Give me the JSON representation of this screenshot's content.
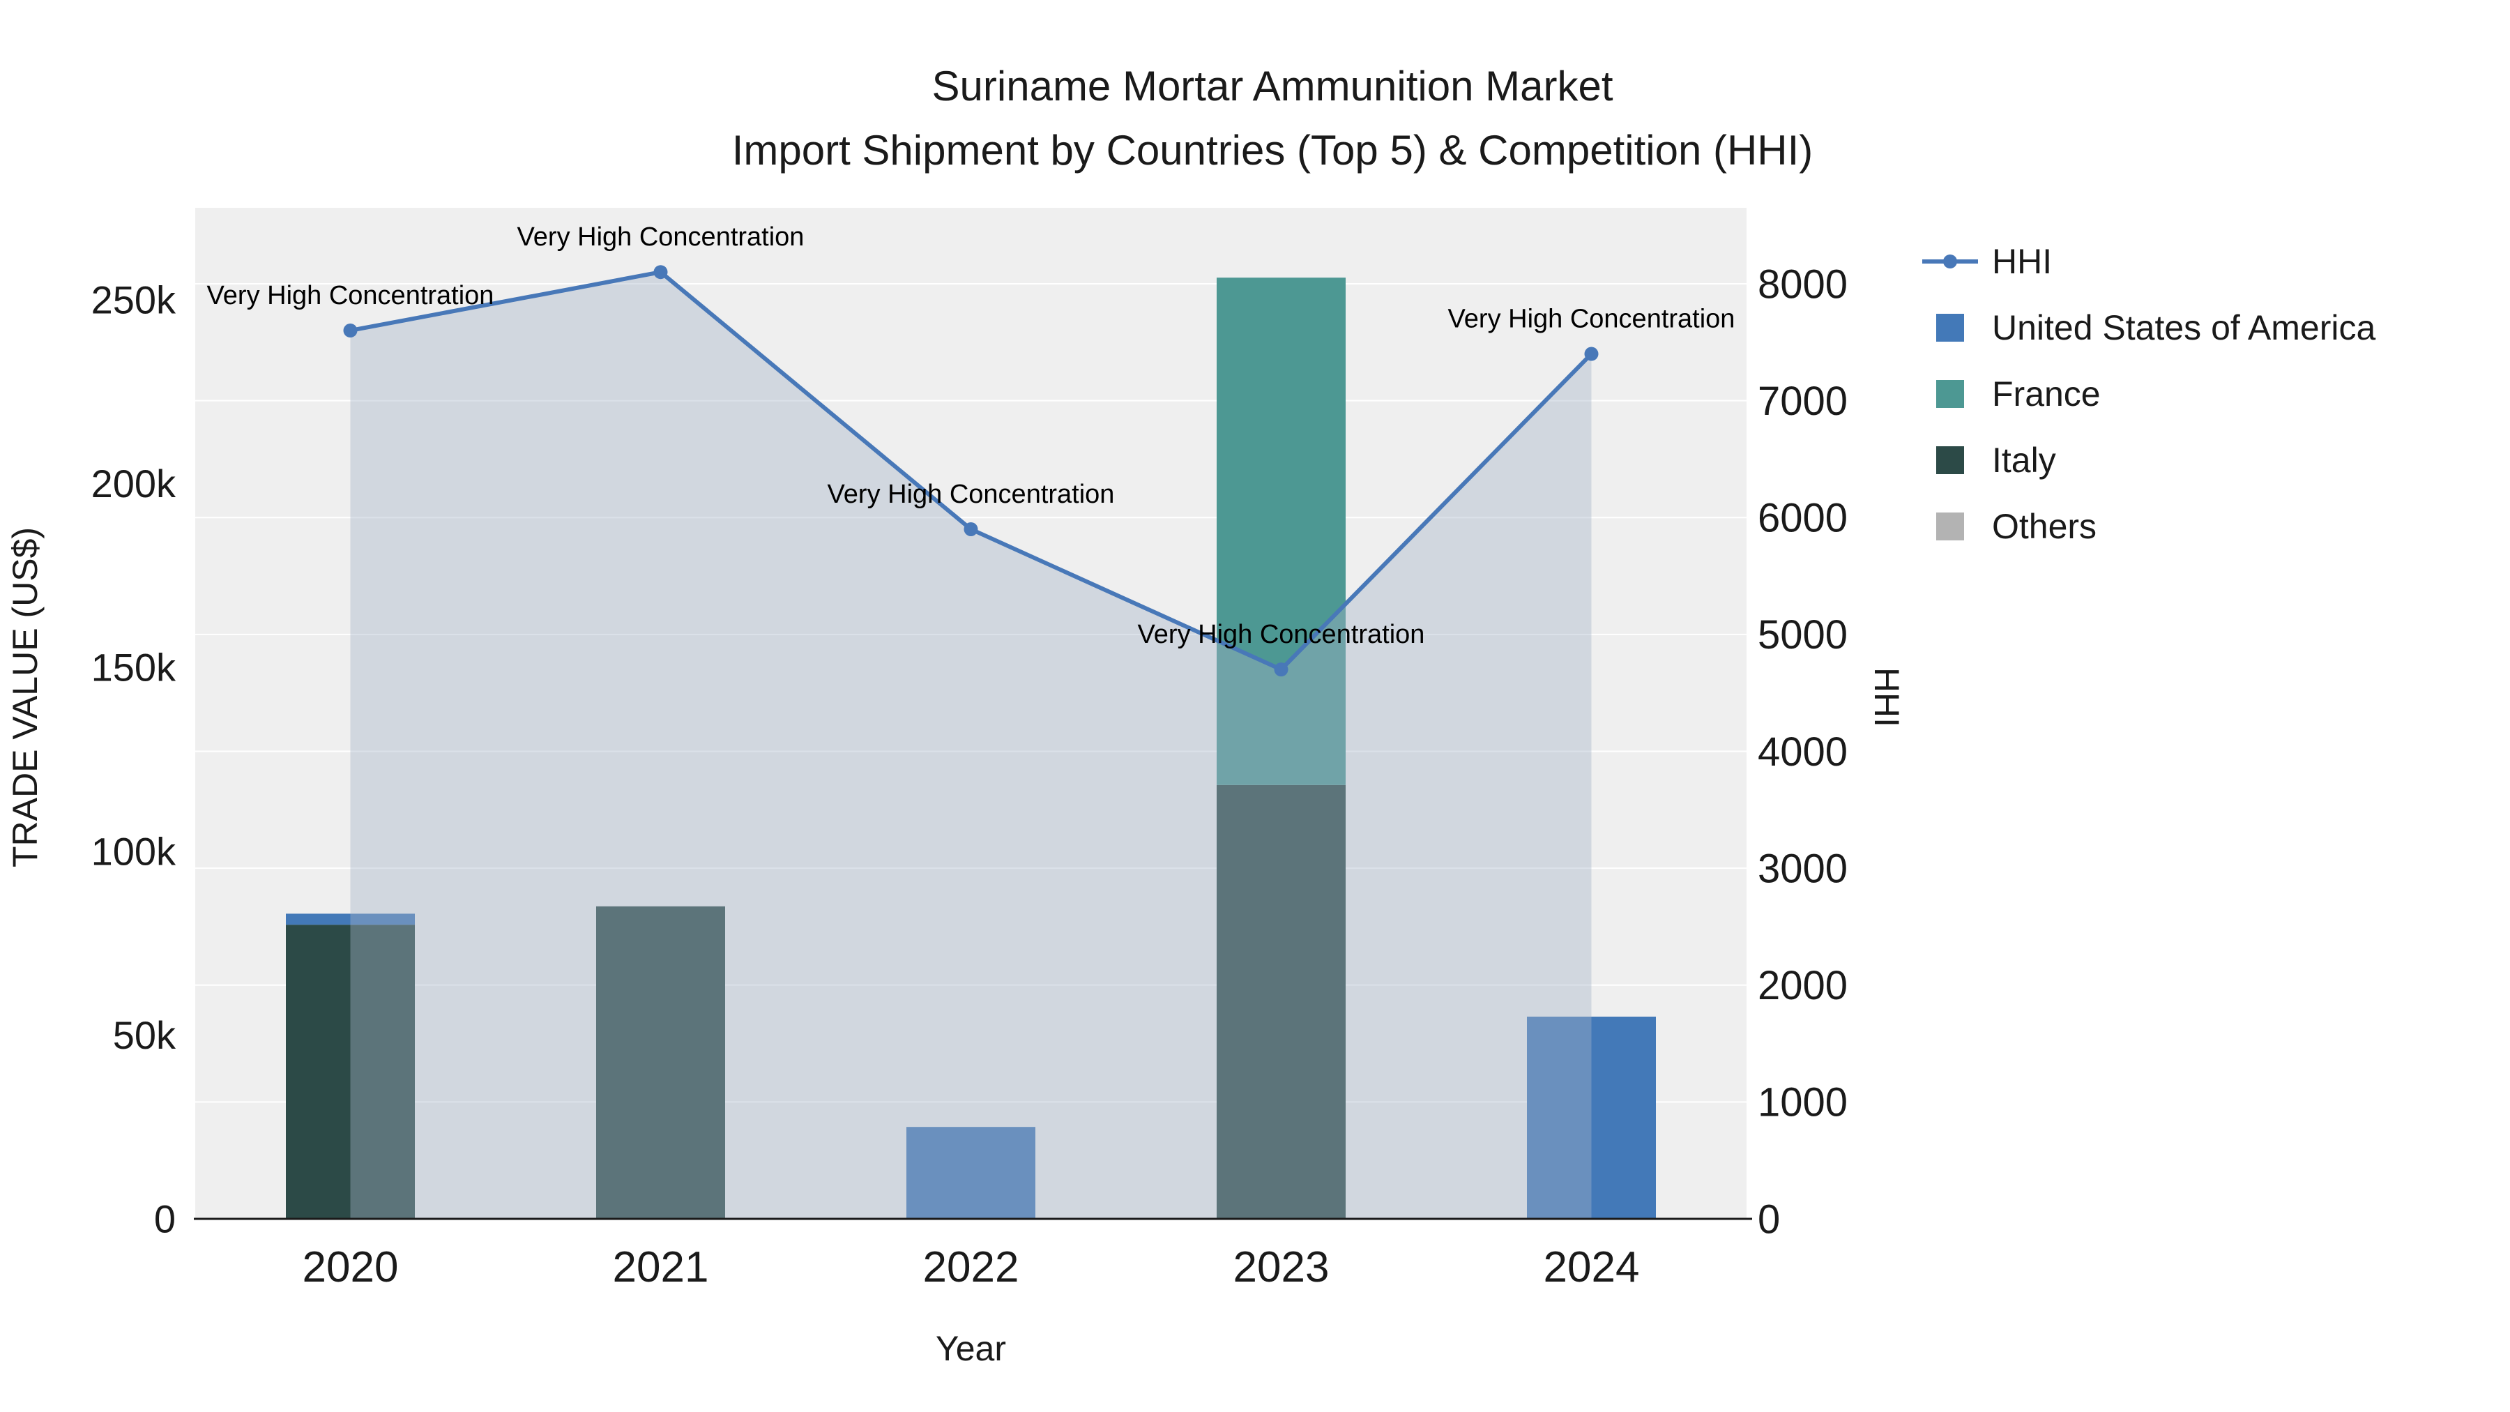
{
  "title": {
    "line1": "Suriname Mortar Ammunition Market",
    "line2": "Import Shipment by Countries (Top 5) & Competition (HHI)"
  },
  "axes": {
    "x_label": "Year",
    "y_left_label": "TRADE VALUE (US$)",
    "y_right_label": "HHI"
  },
  "chart_data": {
    "type": "bar",
    "subtype": "stacked-bars-with-line",
    "categories": [
      "2020",
      "2021",
      "2022",
      "2023",
      "2024"
    ],
    "series": [
      {
        "name": "United States of America",
        "color": "#4379b8",
        "values": [
          3000,
          0,
          25000,
          0,
          55000
        ]
      },
      {
        "name": "France",
        "color": "#4d9893",
        "values": [
          0,
          0,
          0,
          138000,
          0
        ]
      },
      {
        "name": "Italy",
        "color": "#2c4a47",
        "values": [
          80000,
          85000,
          0,
          118000,
          0
        ]
      },
      {
        "name": "Others",
        "color": "#b3b3b3",
        "values": [
          0,
          0,
          0,
          0,
          0
        ]
      }
    ],
    "stack_order_bottom_to_top": [
      "Italy",
      "France",
      "United States of America",
      "Others"
    ],
    "line_series": {
      "name": "HHI",
      "color": "#4878b8",
      "area_fill": "rgba(165,180,200,0.40)",
      "values": [
        7600,
        8100,
        5900,
        4700,
        7400
      ]
    },
    "annotations": [
      {
        "year": "2020",
        "text": "Very High Concentration"
      },
      {
        "year": "2021",
        "text": "Very High Concentration"
      },
      {
        "year": "2022",
        "text": "Very High Concentration"
      },
      {
        "year": "2023",
        "text": "Very High Concentration"
      },
      {
        "year": "2024",
        "text": "Very High Concentration"
      }
    ],
    "y_left": {
      "tick_labels": [
        "0",
        "50k",
        "100k",
        "150k",
        "200k",
        "250k"
      ],
      "tick_values": [
        0,
        50000,
        100000,
        150000,
        200000,
        250000
      ],
      "max": 275000
    },
    "y_right": {
      "tick_labels": [
        "0",
        "1000",
        "2000",
        "3000",
        "4000",
        "5000",
        "6000",
        "7000",
        "8000"
      ],
      "tick_values": [
        0,
        1000,
        2000,
        3000,
        4000,
        5000,
        6000,
        7000,
        8000
      ],
      "max": 8650
    },
    "plot_background": "#efefef",
    "gridline_color": "#ffffff",
    "legend": [
      {
        "label": "HHI",
        "marker": "line",
        "color": "#4878b8"
      },
      {
        "label": "United States of America",
        "marker": "square",
        "color": "#4379b8"
      },
      {
        "label": "France",
        "marker": "square",
        "color": "#4d9893"
      },
      {
        "label": "Italy",
        "marker": "square",
        "color": "#2c4a47"
      },
      {
        "label": "Others",
        "marker": "square",
        "color": "#b3b3b3"
      }
    ]
  }
}
